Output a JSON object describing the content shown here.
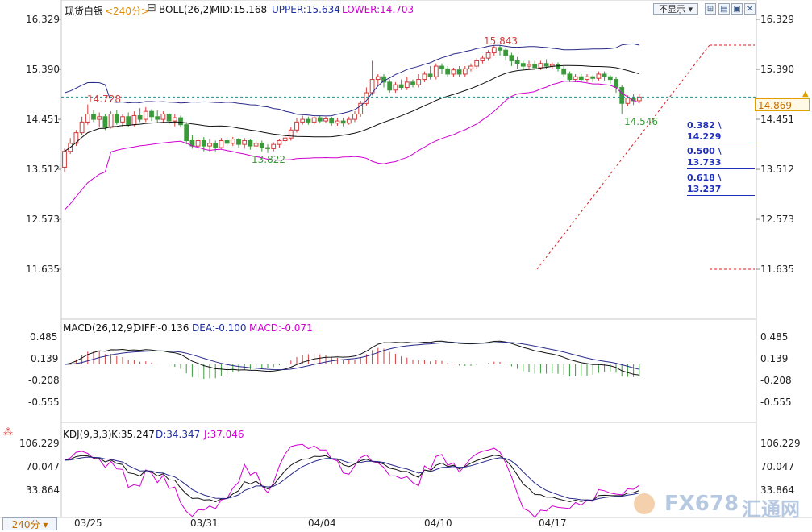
{
  "header": {
    "instrument": "现货白银",
    "period": "<240分>",
    "boll_text": "BOLL(26,2)",
    "mid": "MID:15.168",
    "upper": "UPPER:15.634",
    "lower": "LOWER:14.703",
    "hide_button": "不显示",
    "period_badge": "240分"
  },
  "macd_header": {
    "params": "MACD(26,12,9)",
    "diff": "DIFF:-0.136",
    "dea": "DEA:-0.100",
    "macd": "MACD:-0.071"
  },
  "kdj_header": {
    "params": "KDJ(9,3,3)",
    "k": "K:35.247",
    "d": "D:34.347",
    "j": "J:37.046"
  },
  "price_axis": [
    "16.329",
    "15.390",
    "14.451",
    "13.512",
    "12.573",
    "11.635"
  ],
  "price_axis_right": [
    "16.329",
    "15.390",
    "14.451",
    "13.512",
    "12.573",
    "11.635"
  ],
  "macd_axis": [
    "0.485",
    "0.139",
    "-0.208",
    "-0.555"
  ],
  "kdj_axis": [
    "106.229",
    "70.047",
    "33.864"
  ],
  "dates": [
    "03/25",
    "03/31",
    "04/04",
    "04/10",
    "04/17"
  ],
  "current_price": "14.869",
  "annotations": {
    "high1": "14.728",
    "low1": "13.822",
    "high2": "15.843",
    "low2": "14.546"
  },
  "fibonacci": [
    {
      "label": "0.382 \\ 14.229"
    },
    {
      "label": "0.500 \\ 13.733"
    },
    {
      "label": "0.618 \\ 13.237"
    }
  ],
  "watermark": {
    "brand": "FX678",
    "cn": "汇通网"
  },
  "colors": {
    "up": "#d23c3c",
    "down": "#3a9a3a",
    "mid": "#111111",
    "band": "#2a2a8a",
    "lower": "#d000d0",
    "dashed": "#d22222"
  },
  "chart_data": {
    "type": "candlestick",
    "y_range": [
      11.635,
      16.329
    ],
    "candles": [
      [
        13.55,
        13.85,
        13.45,
        13.9
      ],
      [
        13.85,
        14.0,
        13.8,
        14.1
      ],
      [
        14.0,
        14.2,
        13.95,
        14.25
      ],
      [
        14.2,
        14.4,
        14.15,
        14.5
      ],
      [
        14.4,
        14.55,
        14.35,
        14.73
      ],
      [
        14.55,
        14.45,
        14.4,
        14.62
      ],
      [
        14.45,
        14.5,
        14.3,
        14.58
      ],
      [
        14.5,
        14.3,
        14.25,
        14.55
      ],
      [
        14.3,
        14.55,
        14.28,
        14.6
      ],
      [
        14.55,
        14.4,
        14.35,
        14.62
      ],
      [
        14.4,
        14.5,
        14.3,
        14.55
      ],
      [
        14.5,
        14.35,
        14.3,
        14.58
      ],
      [
        14.35,
        14.52,
        14.32,
        14.6
      ],
      [
        14.52,
        14.45,
        14.4,
        14.66
      ],
      [
        14.45,
        14.6,
        14.4,
        14.68
      ],
      [
        14.6,
        14.5,
        14.42,
        14.64
      ],
      [
        14.5,
        14.45,
        14.38,
        14.62
      ],
      [
        14.45,
        14.55,
        14.4,
        14.6
      ],
      [
        14.55,
        14.42,
        14.35,
        14.58
      ],
      [
        14.42,
        14.48,
        14.32,
        14.55
      ],
      [
        14.48,
        14.35,
        14.3,
        14.52
      ],
      [
        14.35,
        14.05,
        13.98,
        14.4
      ],
      [
        14.05,
        13.95,
        13.9,
        14.15
      ],
      [
        13.95,
        14.05,
        13.88,
        14.1
      ],
      [
        14.05,
        13.95,
        13.85,
        14.12
      ],
      [
        13.95,
        14.0,
        13.85,
        14.08
      ],
      [
        14.0,
        13.92,
        13.85,
        14.05
      ],
      [
        13.92,
        14.05,
        13.9,
        14.1
      ],
      [
        14.05,
        14.0,
        13.95,
        14.12
      ],
      [
        14.0,
        14.08,
        13.95,
        14.12
      ],
      [
        14.08,
        13.98,
        13.92,
        14.1
      ],
      [
        13.98,
        14.05,
        13.9,
        14.1
      ],
      [
        14.05,
        13.95,
        13.88,
        14.08
      ],
      [
        13.95,
        14.0,
        13.9,
        14.05
      ],
      [
        14.0,
        13.92,
        13.85,
        14.05
      ],
      [
        13.92,
        13.9,
        13.82,
        13.98
      ],
      [
        13.9,
        13.98,
        13.85,
        14.02
      ],
      [
        13.98,
        14.05,
        13.92,
        14.08
      ],
      [
        14.05,
        14.1,
        14.0,
        14.15
      ],
      [
        14.1,
        14.25,
        14.05,
        14.3
      ],
      [
        14.25,
        14.4,
        14.2,
        14.48
      ],
      [
        14.4,
        14.45,
        14.35,
        14.52
      ],
      [
        14.45,
        14.4,
        14.35,
        14.5
      ],
      [
        14.4,
        14.48,
        14.35,
        14.52
      ],
      [
        14.48,
        14.42,
        14.38,
        14.52
      ],
      [
        14.42,
        14.46,
        14.38,
        14.5
      ],
      [
        14.46,
        14.38,
        14.33,
        14.5
      ],
      [
        14.38,
        14.42,
        14.33,
        14.48
      ],
      [
        14.42,
        14.38,
        14.32,
        14.48
      ],
      [
        14.38,
        14.45,
        14.35,
        14.5
      ],
      [
        14.45,
        14.55,
        14.4,
        14.6
      ],
      [
        14.55,
        14.75,
        14.5,
        14.8
      ],
      [
        14.75,
        14.95,
        14.7,
        15.05
      ],
      [
        14.95,
        15.2,
        14.9,
        15.55
      ],
      [
        15.2,
        15.25,
        15.1,
        15.3
      ],
      [
        15.25,
        15.15,
        15.05,
        15.3
      ],
      [
        15.15,
        15.0,
        14.95,
        15.2
      ],
      [
        15.0,
        15.1,
        14.95,
        15.15
      ],
      [
        15.1,
        15.05,
        15.0,
        15.2
      ],
      [
        15.05,
        15.15,
        15.0,
        15.25
      ],
      [
        15.15,
        15.1,
        15.05,
        15.2
      ],
      [
        15.1,
        15.2,
        15.05,
        15.3
      ],
      [
        15.2,
        15.3,
        15.15,
        15.35
      ],
      [
        15.3,
        15.25,
        15.2,
        15.45
      ],
      [
        15.25,
        15.45,
        15.2,
        15.5
      ],
      [
        15.45,
        15.4,
        15.3,
        15.5
      ],
      [
        15.4,
        15.3,
        15.25,
        15.45
      ],
      [
        15.3,
        15.38,
        15.25,
        15.42
      ],
      [
        15.38,
        15.3,
        15.25,
        15.45
      ],
      [
        15.3,
        15.4,
        15.25,
        15.45
      ],
      [
        15.4,
        15.45,
        15.35,
        15.5
      ],
      [
        15.45,
        15.55,
        15.4,
        15.6
      ],
      [
        15.55,
        15.6,
        15.5,
        15.65
      ],
      [
        15.6,
        15.7,
        15.55,
        15.75
      ],
      [
        15.7,
        15.8,
        15.65,
        15.84
      ],
      [
        15.8,
        15.75,
        15.65,
        15.84
      ],
      [
        15.75,
        15.65,
        15.55,
        15.8
      ],
      [
        15.65,
        15.55,
        15.45,
        15.7
      ],
      [
        15.55,
        15.5,
        15.4,
        15.62
      ],
      [
        15.5,
        15.45,
        15.38,
        15.55
      ],
      [
        15.45,
        15.48,
        15.4,
        15.55
      ],
      [
        15.48,
        15.42,
        15.38,
        15.55
      ],
      [
        15.42,
        15.5,
        15.38,
        15.55
      ],
      [
        15.5,
        15.45,
        15.4,
        15.58
      ],
      [
        15.45,
        15.48,
        15.4,
        15.52
      ],
      [
        15.48,
        15.4,
        15.35,
        15.52
      ],
      [
        15.4,
        15.3,
        15.25,
        15.45
      ],
      [
        15.3,
        15.2,
        15.15,
        15.35
      ],
      [
        15.2,
        15.25,
        15.15,
        15.3
      ],
      [
        15.25,
        15.2,
        15.15,
        15.3
      ],
      [
        15.2,
        15.25,
        15.15,
        15.3
      ],
      [
        15.25,
        15.22,
        15.15,
        15.28
      ],
      [
        15.22,
        15.3,
        15.18,
        15.35
      ],
      [
        15.3,
        15.25,
        15.18,
        15.35
      ],
      [
        15.25,
        15.2,
        15.12,
        15.28
      ],
      [
        15.2,
        15.05,
        14.95,
        15.25
      ],
      [
        15.05,
        14.75,
        14.55,
        15.1
      ],
      [
        14.75,
        14.85,
        14.7,
        14.9
      ],
      [
        14.85,
        14.8,
        14.72,
        14.92
      ],
      [
        14.8,
        14.87,
        14.75,
        14.92
      ]
    ]
  }
}
